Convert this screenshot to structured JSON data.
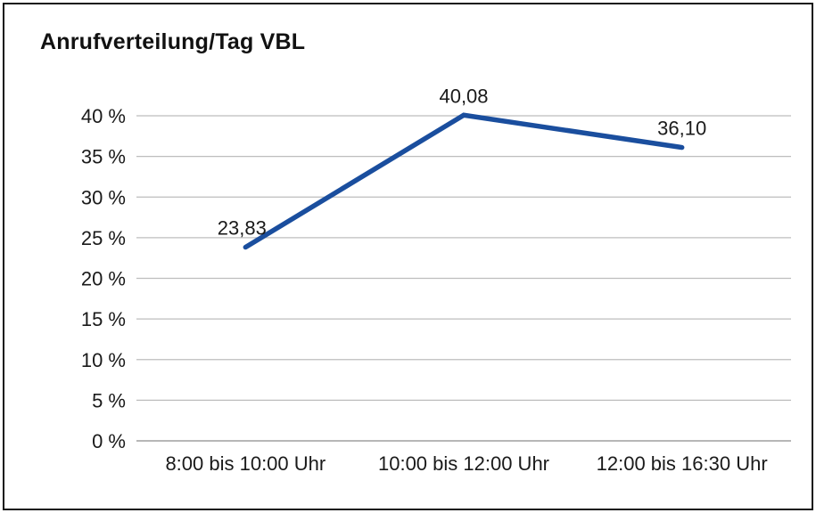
{
  "chart_data": {
    "type": "line",
    "title": "Anrufverteilung/Tag VBL",
    "categories": [
      "8:00 bis 10:00 Uhr",
      "10:00 bis 12:00 Uhr",
      "12:00 bis 16:30 Uhr"
    ],
    "values": [
      23.83,
      40.08,
      36.1
    ],
    "data_labels": [
      "23,83",
      "40,08",
      "36,10"
    ],
    "xlabel": "",
    "ylabel": "",
    "ylim": [
      0,
      40
    ],
    "ytick_step": 5,
    "ytick_labels": [
      "0 %",
      "5 %",
      "10 %",
      "15 %",
      "20 %",
      "25 %",
      "30 %",
      "35 %",
      "40 %"
    ],
    "grid": true,
    "legend": "none",
    "line_color": "#1A4E9E",
    "grid_color": "#bdbdbd",
    "axis_color": "#8c8c8c",
    "text_color": "#1a1a1a",
    "border_color": "#151515"
  }
}
